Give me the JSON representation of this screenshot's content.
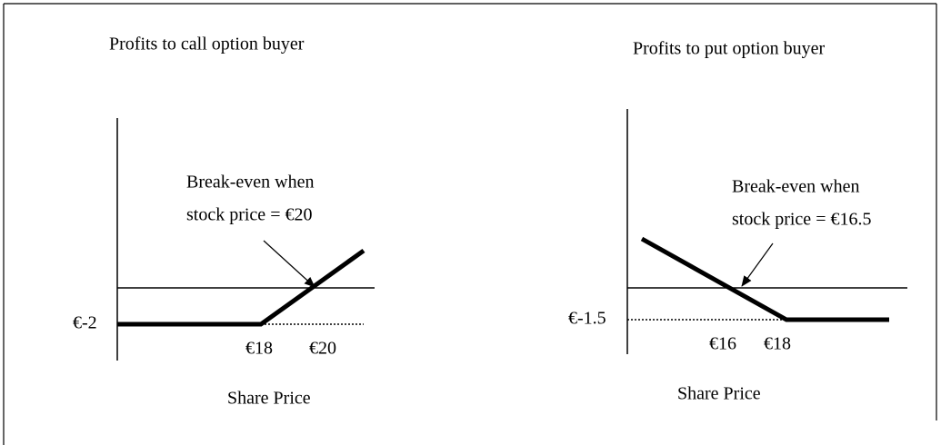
{
  "call": {
    "title": "Profits to call option buyer",
    "annotation": [
      "Break-even when",
      "stock price = €20"
    ],
    "y_label": "€-2",
    "x_labels": [
      "€18",
      "€20"
    ],
    "axis_label": "Share Price"
  },
  "put": {
    "title": "Profits to put option buyer",
    "annotation": [
      "Break-even when",
      "stock price = €16.5"
    ],
    "y_label": "€-1.5",
    "x_labels": [
      "€16",
      "€18"
    ],
    "axis_label": "Share Price"
  }
}
